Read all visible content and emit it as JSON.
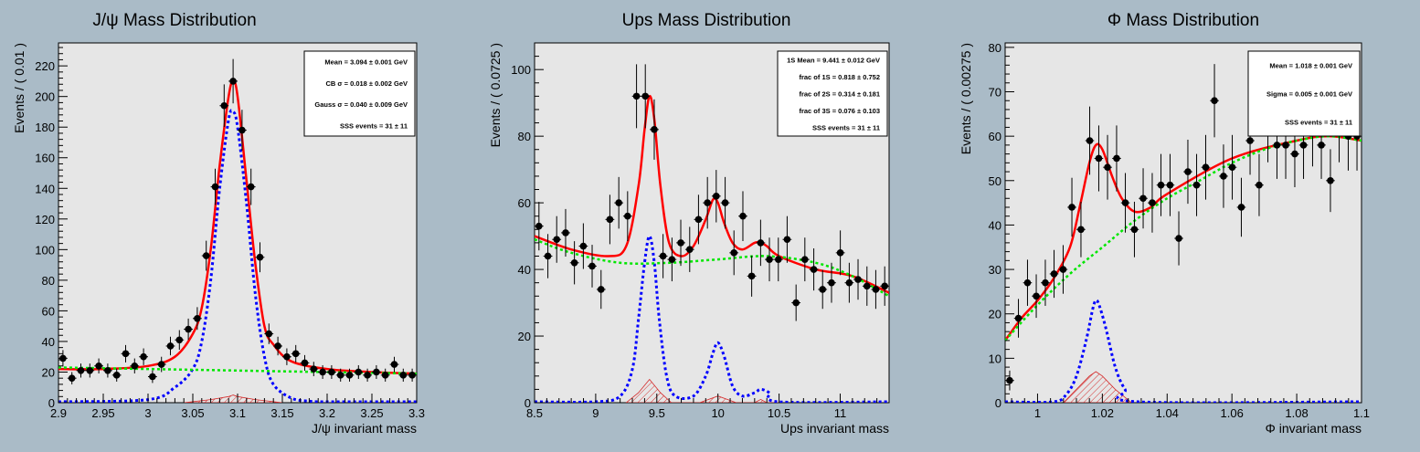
{
  "colors": {
    "background": "#aabbc7",
    "frame": "#e6e6e6",
    "data_points": "#000000",
    "total_fit": "#ff0000",
    "signal": "#0000ff",
    "background_fit": "#00e600",
    "hatch": "#d42a2a"
  },
  "chart_data": [
    {
      "type": "scatter",
      "title": "J/ψ Mass Distribution",
      "xlabel": "J/ψ invariant mass",
      "ylabel": "Events / ( 0.01 )",
      "xlim": [
        2.9,
        3.3
      ],
      "ylim": [
        0,
        235
      ],
      "xticks": [
        2.9,
        2.95,
        3,
        3.05,
        3.1,
        3.15,
        3.2,
        3.25,
        3.3
      ],
      "xtick_labels": [
        "2.9",
        "2.95",
        "3",
        "3.05",
        "3.1",
        "3.15",
        "3.2",
        "3.25",
        "3.3"
      ],
      "yticks": [
        0,
        20,
        40,
        60,
        80,
        100,
        120,
        140,
        160,
        180,
        200,
        220
      ],
      "ytick_labels": [
        "0",
        "20",
        "40",
        "60",
        "80",
        "100",
        "120",
        "140",
        "160",
        "180",
        "200",
        "220"
      ],
      "stats": [
        "Mean = 3.094 ± 0.001 GeV",
        "CB σ = 0.018 ± 0.002 GeV",
        "Gauss σ = 0.040 ± 0.009 GeV",
        "SSS events = 31 ± 11"
      ],
      "stats_box": "top-right",
      "points_x": [
        2.905,
        2.915,
        2.925,
        2.935,
        2.945,
        2.955,
        2.965,
        2.975,
        2.985,
        2.995,
        3.005,
        3.015,
        3.025,
        3.035,
        3.045,
        3.055,
        3.065,
        3.075,
        3.085,
        3.095,
        3.105,
        3.115,
        3.125,
        3.135,
        3.145,
        3.155,
        3.165,
        3.175,
        3.185,
        3.195,
        3.205,
        3.215,
        3.225,
        3.235,
        3.245,
        3.255,
        3.265,
        3.275,
        3.285,
        3.295
      ],
      "points_y": [
        29,
        16,
        21,
        21,
        24,
        21,
        18,
        32,
        24,
        30,
        17,
        25,
        37,
        41,
        48,
        55,
        96,
        141,
        194,
        210,
        178,
        141,
        95,
        45,
        37,
        30,
        32,
        26,
        22,
        20,
        20,
        18,
        18,
        20,
        18,
        20,
        18,
        25,
        18,
        18
      ],
      "fits": {
        "total": {
          "x": [
            2.9,
            2.95,
            3.0,
            3.03,
            3.05,
            3.06,
            3.07,
            3.08,
            3.09,
            3.095,
            3.1,
            3.11,
            3.12,
            3.13,
            3.14,
            3.16,
            3.2,
            3.25,
            3.3
          ],
          "y": [
            22,
            22,
            24,
            30,
            45,
            62,
            100,
            155,
            200,
            210,
            200,
            145,
            90,
            50,
            38,
            27,
            22,
            20,
            19
          ]
        },
        "signal": {
          "x": [
            2.9,
            3.0,
            3.03,
            3.05,
            3.06,
            3.07,
            3.08,
            3.09,
            3.095,
            3.1,
            3.11,
            3.12,
            3.13,
            3.14,
            3.16,
            3.18,
            3.2,
            3.3
          ],
          "y": [
            0,
            2,
            10,
            22,
            40,
            80,
            140,
            185,
            190,
            180,
            130,
            70,
            30,
            12,
            3,
            1,
            0,
            0
          ]
        },
        "background": {
          "x": [
            2.9,
            3.0,
            3.1,
            3.2,
            3.3
          ],
          "y": [
            23,
            22,
            21,
            20,
            19
          ]
        },
        "hatch": {
          "x": [
            3.04,
            3.07,
            3.09,
            3.095,
            3.1,
            3.12,
            3.15
          ],
          "y": [
            0,
            2,
            4,
            5,
            4,
            2,
            0
          ]
        }
      }
    },
    {
      "type": "scatter",
      "title": "Ups Mass Distribution",
      "xlabel": "Ups invariant mass",
      "ylabel": "Events / ( 0.0725 )",
      "xlim": [
        8.5,
        11.4
      ],
      "ylim": [
        0,
        108
      ],
      "xticks": [
        8.5,
        9,
        9.5,
        10,
        10.5,
        11
      ],
      "xtick_labels": [
        "8.5",
        "9",
        "9.5",
        "10",
        "10.5",
        "11"
      ],
      "yticks": [
        0,
        20,
        40,
        60,
        80,
        100
      ],
      "ytick_labels": [
        "0",
        "20",
        "40",
        "60",
        "80",
        "100"
      ],
      "stats": [
        "1S Mean = 9.441 ± 0.012 GeV",
        "frac of 1S = 0.818 ± 0.752",
        "frac of 2S = 0.314 ± 0.181",
        "frac of 3S = 0.076 ± 0.103",
        "SSS events = 31 ± 11"
      ],
      "stats_box": "top-right",
      "points_x": [
        8.536,
        8.609,
        8.681,
        8.754,
        8.826,
        8.899,
        8.971,
        9.044,
        9.116,
        9.189,
        9.261,
        9.334,
        9.406,
        9.479,
        9.551,
        9.624,
        9.696,
        9.769,
        9.841,
        9.914,
        9.986,
        10.059,
        10.131,
        10.204,
        10.276,
        10.349,
        10.421,
        10.494,
        10.566,
        10.639,
        10.711,
        10.784,
        10.856,
        10.929,
        11.001,
        11.074,
        11.146,
        11.219,
        11.291,
        11.364
      ],
      "points_y": [
        53,
        44,
        49,
        51,
        42,
        47,
        41,
        34,
        55,
        60,
        56,
        92,
        92,
        82,
        44,
        43,
        48,
        46,
        55,
        60,
        62,
        60,
        45,
        56,
        38,
        48,
        43,
        43,
        49,
        30,
        43,
        40,
        34,
        36,
        45,
        36,
        37,
        35,
        34,
        35
      ],
      "fits": {
        "total": {
          "x": [
            8.5,
            8.8,
            9.1,
            9.25,
            9.35,
            9.4,
            9.44,
            9.48,
            9.53,
            9.6,
            9.7,
            9.8,
            9.9,
            9.96,
            10.0,
            10.05,
            10.12,
            10.2,
            10.3,
            10.35,
            10.4,
            10.5,
            10.8,
            11.1,
            11.4
          ],
          "y": [
            50,
            46,
            44,
            47,
            65,
            82,
            92,
            85,
            65,
            48,
            44,
            47,
            55,
            61,
            60,
            54,
            48,
            46,
            48,
            48,
            47,
            44,
            40,
            38,
            33
          ]
        },
        "signal": {
          "x": [
            8.5,
            9.0,
            9.2,
            9.3,
            9.35,
            9.4,
            9.44,
            9.48,
            9.52,
            9.58,
            9.65,
            9.8,
            9.9,
            9.96,
            10.0,
            10.05,
            10.12,
            10.2,
            10.3,
            10.35,
            10.42,
            10.5,
            11.4
          ],
          "y": [
            0,
            0,
            2,
            10,
            25,
            42,
            50,
            42,
            25,
            8,
            2,
            2,
            8,
            15,
            18,
            14,
            5,
            2,
            3,
            4,
            3,
            0,
            0
          ]
        },
        "background": {
          "x": [
            8.5,
            8.8,
            9.2,
            9.6,
            10.0,
            10.4,
            10.8,
            11.1,
            11.4
          ],
          "y": [
            49,
            45,
            42,
            42,
            43,
            44,
            42,
            38,
            32
          ]
        },
        "hatch": {
          "x": [
            9.25,
            9.35,
            9.44,
            9.53,
            9.62,
            9.85,
            10.0,
            10.15,
            10.3,
            10.35,
            10.4,
            10.5
          ],
          "y": [
            0,
            3,
            7,
            3,
            0,
            0,
            2,
            0,
            0,
            1,
            0,
            0
          ]
        }
      }
    },
    {
      "type": "scatter",
      "title": "Φ Mass Distribution",
      "xlabel": "Φ invariant mass",
      "ylabel": "Events / ( 0.00275 )",
      "xlim": [
        0.99,
        1.1
      ],
      "ylim": [
        0,
        81
      ],
      "xticks": [
        1.0,
        1.02,
        1.04,
        1.06,
        1.08,
        1.1
      ],
      "xtick_labels": [
        "1",
        "1.02",
        "1.04",
        "1.06",
        "1.08",
        "1.1"
      ],
      "yticks": [
        0,
        10,
        20,
        30,
        40,
        50,
        60,
        70,
        80
      ],
      "ytick_labels": [
        "0",
        "10",
        "20",
        "30",
        "40",
        "50",
        "60",
        "70",
        "80"
      ],
      "stats": [
        "Mean = 1.018 ± 0.001 GeV",
        "Sigma = 0.005 ± 0.001 GeV",
        "SSS events = 31 ± 11"
      ],
      "stats_box": "top-right",
      "points_x": [
        0.9914,
        0.9941,
        0.9969,
        0.9996,
        1.0024,
        1.0051,
        1.0079,
        1.0106,
        1.0134,
        1.0161,
        1.0189,
        1.0216,
        1.0244,
        1.0271,
        1.0299,
        1.0326,
        1.0354,
        1.0381,
        1.0409,
        1.0436,
        1.0464,
        1.0491,
        1.0519,
        1.0546,
        1.0574,
        1.0601,
        1.0629,
        1.0656,
        1.0684,
        1.0711,
        1.0739,
        1.0766,
        1.0794,
        1.0821,
        1.0849,
        1.0876,
        1.0904,
        1.0931,
        1.0959,
        1.0986
      ],
      "points_y": [
        5,
        19,
        27,
        24,
        27,
        29,
        30,
        44,
        39,
        59,
        55,
        53,
        55,
        45,
        39,
        46,
        45,
        49,
        49,
        37,
        52,
        49,
        53,
        68,
        51,
        53,
        44,
        59,
        49,
        62,
        58,
        58,
        56,
        58,
        61,
        58,
        50,
        62,
        60,
        60
      ],
      "fits": {
        "total": {
          "x": [
            0.99,
            0.995,
            1.0,
            1.005,
            1.01,
            1.013,
            1.016,
            1.018,
            1.02,
            1.023,
            1.026,
            1.03,
            1.035,
            1.04,
            1.06,
            1.08,
            1.09,
            1.1
          ],
          "y": [
            14,
            19,
            23,
            28,
            35,
            44,
            54,
            58,
            57,
            51,
            46,
            43,
            44,
            47,
            55,
            59,
            60,
            59
          ]
        },
        "signal": {
          "x": [
            0.99,
            1.005,
            1.009,
            1.012,
            1.015,
            1.017,
            1.018,
            1.019,
            1.021,
            1.024,
            1.027,
            1.031,
            1.1
          ],
          "y": [
            0,
            0,
            2,
            6,
            14,
            21,
            23,
            22,
            17,
            8,
            3,
            0,
            0
          ]
        },
        "background": {
          "x": [
            0.99,
            1.0,
            1.01,
            1.02,
            1.03,
            1.04,
            1.05,
            1.06,
            1.07,
            1.08,
            1.09,
            1.1
          ],
          "y": [
            14,
            22,
            29,
            35,
            41,
            46,
            50,
            54,
            57,
            59,
            60,
            59
          ]
        },
        "hatch": {
          "x": [
            1.008,
            1.012,
            1.016,
            1.018,
            1.02,
            1.024,
            1.029
          ],
          "y": [
            0,
            3,
            6,
            7,
            6,
            3,
            0
          ]
        }
      }
    }
  ]
}
